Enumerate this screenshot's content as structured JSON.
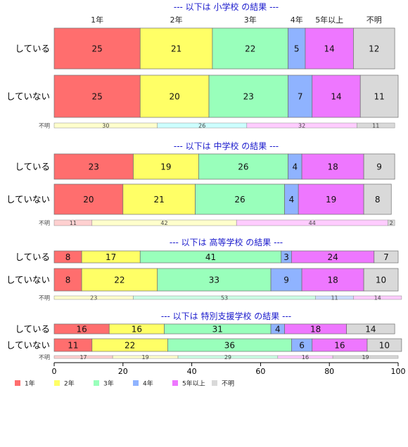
{
  "chart_data": {
    "type": "bar",
    "orientation": "horizontal",
    "stacked": true,
    "xlim": [
      0,
      100
    ],
    "x_ticks": [
      "0",
      "20",
      "40",
      "60",
      "80",
      "100"
    ],
    "categories": [
      "1年",
      "2年",
      "3年",
      "4年",
      "5年以上",
      "不明"
    ],
    "colors": [
      "#ff6e6e",
      "#ffff66",
      "#99ffbb",
      "#8fb3ff",
      "#ee77ff",
      "#d9d9d9"
    ],
    "legend": {
      "position": "bottom-left",
      "labels": [
        "1年",
        "2年",
        "3年",
        "4年",
        "5年以上",
        "不明"
      ]
    },
    "panels": [
      {
        "title": "--- 以下は 小学校 の結果 ---",
        "column_labels": [
          "1年",
          "2年",
          "3年",
          "4年",
          "5年以上",
          "不明"
        ],
        "rows": [
          {
            "label": "している",
            "values": [
              25,
              21,
              22,
              5,
              14,
              12
            ]
          },
          {
            "label": "していない",
            "values": [
              25,
              20,
              23,
              7,
              14,
              11
            ]
          }
        ],
        "unknown_row": {
          "label": "不明",
          "segments": [
            {
              "value": 30,
              "color": "#ffffcc"
            },
            {
              "value": 26,
              "color": "#ccffff"
            },
            {
              "value": 32,
              "color": "#ffccff"
            },
            {
              "value": 11,
              "color": "#d9d9d9"
            }
          ]
        }
      },
      {
        "title": "--- 以下は 中学校 の結果 ---",
        "rows": [
          {
            "label": "している",
            "values": [
              23,
              19,
              26,
              4,
              18,
              9
            ]
          },
          {
            "label": "していない",
            "values": [
              20,
              21,
              26,
              4,
              19,
              8
            ]
          }
        ],
        "unknown_row": {
          "label": "不明",
          "segments": [
            {
              "value": 11,
              "color": "#ffd0d0"
            },
            {
              "value": 42,
              "color": "#ffffcc"
            },
            {
              "value": 44,
              "color": "#ffccff"
            },
            {
              "value": 2,
              "color": "#d9d9d9"
            }
          ]
        }
      },
      {
        "title": "--- 以下は 高等学校 の結果 ---",
        "rows": [
          {
            "label": "している",
            "values": [
              8,
              17,
              41,
              3,
              24,
              7
            ]
          },
          {
            "label": "していない",
            "values": [
              8,
              22,
              33,
              9,
              18,
              10
            ]
          }
        ],
        "unknown_row": {
          "label": "不明",
          "segments": [
            {
              "value": 23,
              "color": "#ffffcc"
            },
            {
              "value": 53,
              "color": "#ccffe6"
            },
            {
              "value": 11,
              "color": "#ccddff"
            },
            {
              "value": 14,
              "color": "#ffccff"
            }
          ]
        }
      },
      {
        "title": "--- 以下は 特別支援学校 の結果 ---",
        "rows": [
          {
            "label": "している",
            "values": [
              16,
              16,
              31,
              4,
              18,
              14
            ]
          },
          {
            "label": "していない",
            "values": [
              11,
              22,
              36,
              6,
              16,
              10
            ]
          }
        ],
        "unknown_row": {
          "label": "不明",
          "segments": [
            {
              "value": 17,
              "color": "#ffd0d0"
            },
            {
              "value": 19,
              "color": "#ffffcc"
            },
            {
              "value": 29,
              "color": "#ccffe6"
            },
            {
              "value": 16,
              "color": "#ffccff"
            },
            {
              "value": 19,
              "color": "#d9d9d9"
            }
          ]
        }
      }
    ]
  }
}
